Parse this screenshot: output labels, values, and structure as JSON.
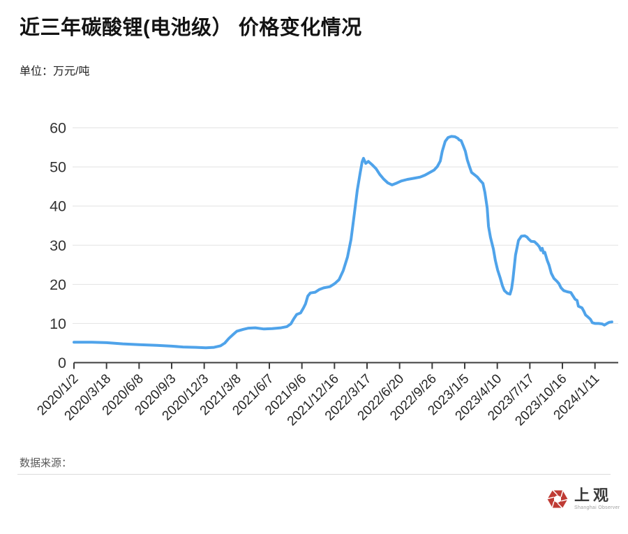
{
  "header": {
    "title": "近三年碳酸锂(电池级） 价格变化情况",
    "unit_label": "单位：万元/吨"
  },
  "footer": {
    "source_label": "数据来源：",
    "logo": {
      "cn": "上观",
      "en": "Shanghai Observer",
      "brand_color": "#bf3b34"
    }
  },
  "chart_data": {
    "type": "line",
    "title": "近三年碳酸锂(电池级） 价格变化情况",
    "unit": "万元/吨",
    "line_color": "#4fa3ea",
    "grid": true,
    "legend": "none",
    "ylim": [
      0,
      60
    ],
    "yticks": [
      0,
      10,
      20,
      30,
      40,
      50,
      60
    ],
    "x_tick_labels": [
      "2020/1/2",
      "2020/3/18",
      "2020/6/8",
      "2020/9/3",
      "2020/12/3",
      "2021/3/8",
      "2021/6/7",
      "2021/9/6",
      "2021/12/16",
      "2022/3/17",
      "2022/6/20",
      "2022/9/26",
      "2023/1/5",
      "2023/4/10",
      "2023/7/17",
      "2023/10/16",
      "2024/1/11"
    ],
    "x_units_note": "points x values are in tick-interval units: 0 = 2020/1/2, 16 = 2024/1/11",
    "points": [
      [
        0,
        5.2
      ],
      [
        0.3,
        5.2
      ],
      [
        0.55,
        5.2
      ],
      [
        1,
        5.1
      ],
      [
        1.5,
        4.8
      ],
      [
        2,
        4.6
      ],
      [
        2.55,
        4.4
      ],
      [
        3,
        4.2
      ],
      [
        3.35,
        4.0
      ],
      [
        3.75,
        3.9
      ],
      [
        4.05,
        3.8
      ],
      [
        4.3,
        3.9
      ],
      [
        4.5,
        4.3
      ],
      [
        4.63,
        5.0
      ],
      [
        4.76,
        6.2
      ],
      [
        4.9,
        7.3
      ],
      [
        5,
        8.0
      ],
      [
        5.2,
        8.5
      ],
      [
        5.36,
        8.8
      ],
      [
        5.57,
        8.9
      ],
      [
        5.83,
        8.6
      ],
      [
        6.09,
        8.7
      ],
      [
        6.36,
        8.9
      ],
      [
        6.54,
        9.2
      ],
      [
        6.66,
        9.9
      ],
      [
        6.75,
        11.2
      ],
      [
        6.84,
        12.3
      ],
      [
        6.96,
        12.7
      ],
      [
        7.05,
        14.0
      ],
      [
        7.11,
        15.0
      ],
      [
        7.18,
        17.0
      ],
      [
        7.26,
        17.8
      ],
      [
        7.41,
        18.0
      ],
      [
        7.54,
        18.7
      ],
      [
        7.67,
        19.1
      ],
      [
        7.86,
        19.4
      ],
      [
        8.01,
        20.2
      ],
      [
        8.14,
        21.2
      ],
      [
        8.27,
        23.5
      ],
      [
        8.4,
        27.0
      ],
      [
        8.51,
        31.5
      ],
      [
        8.61,
        38.0
      ],
      [
        8.7,
        44.0
      ],
      [
        8.79,
        48.5
      ],
      [
        8.85,
        51.3
      ],
      [
        8.89,
        52.2
      ],
      [
        8.96,
        50.9
      ],
      [
        9.04,
        51.4
      ],
      [
        9.15,
        50.6
      ],
      [
        9.28,
        49.5
      ],
      [
        9.39,
        48.1
      ],
      [
        9.51,
        46.9
      ],
      [
        9.64,
        45.9
      ],
      [
        9.77,
        45.4
      ],
      [
        9.92,
        45.9
      ],
      [
        10.05,
        46.4
      ],
      [
        10.24,
        46.8
      ],
      [
        10.44,
        47.1
      ],
      [
        10.63,
        47.4
      ],
      [
        10.78,
        47.9
      ],
      [
        10.93,
        48.6
      ],
      [
        11.06,
        49.2
      ],
      [
        11.16,
        50.1
      ],
      [
        11.25,
        51.5
      ],
      [
        11.31,
        54.0
      ],
      [
        11.4,
        56.5
      ],
      [
        11.49,
        57.5
      ],
      [
        11.59,
        57.8
      ],
      [
        11.7,
        57.7
      ],
      [
        11.79,
        57.3
      ],
      [
        11.83,
        56.9
      ],
      [
        11.89,
        56.7
      ],
      [
        11.96,
        55.3
      ],
      [
        12.02,
        54.0
      ],
      [
        12.08,
        51.8
      ],
      [
        12.15,
        50.0
      ],
      [
        12.21,
        48.6
      ],
      [
        12.3,
        48.0
      ],
      [
        12.39,
        47.4
      ],
      [
        12.47,
        46.6
      ],
      [
        12.56,
        45.8
      ],
      [
        12.62,
        43.5
      ],
      [
        12.69,
        39.5
      ],
      [
        12.73,
        34.8
      ],
      [
        12.79,
        32.0
      ],
      [
        12.88,
        29.0
      ],
      [
        12.94,
        26.1
      ],
      [
        13.01,
        23.7
      ],
      [
        13.09,
        21.6
      ],
      [
        13.16,
        19.6
      ],
      [
        13.22,
        18.4
      ],
      [
        13.31,
        17.7
      ],
      [
        13.39,
        17.5
      ],
      [
        13.44,
        18.9
      ],
      [
        13.48,
        21.3
      ],
      [
        13.52,
        24.3
      ],
      [
        13.56,
        27.5
      ],
      [
        13.61,
        29.5
      ],
      [
        13.65,
        31.2
      ],
      [
        13.74,
        32.3
      ],
      [
        13.84,
        32.4
      ],
      [
        13.91,
        32.1
      ],
      [
        13.97,
        31.5
      ],
      [
        14.04,
        31.0
      ],
      [
        14.14,
        30.9
      ],
      [
        14.23,
        30.2
      ],
      [
        14.29,
        29.6
      ],
      [
        14.34,
        28.7
      ],
      [
        14.38,
        29.2
      ],
      [
        14.42,
        28.0
      ],
      [
        14.46,
        28.2
      ],
      [
        14.53,
        26.2
      ],
      [
        14.59,
        24.9
      ],
      [
        14.66,
        22.8
      ],
      [
        14.74,
        21.5
      ],
      [
        14.83,
        20.8
      ],
      [
        14.89,
        20.2
      ],
      [
        14.96,
        19.1
      ],
      [
        15.04,
        18.4
      ],
      [
        15.15,
        18.1
      ],
      [
        15.26,
        17.9
      ],
      [
        15.32,
        17.1
      ],
      [
        15.39,
        16.2
      ],
      [
        15.45,
        15.9
      ],
      [
        15.49,
        14.4
      ],
      [
        15.6,
        14.0
      ],
      [
        15.66,
        13.1
      ],
      [
        15.71,
        12.2
      ],
      [
        15.79,
        11.6
      ],
      [
        15.86,
        11.1
      ],
      [
        15.92,
        10.2
      ],
      [
        16.01,
        10.0
      ],
      [
        16.11,
        10.0
      ],
      [
        16.22,
        9.9
      ],
      [
        16.29,
        9.6
      ],
      [
        16.37,
        10.0
      ],
      [
        16.44,
        10.3
      ],
      [
        16.52,
        10.4
      ]
    ]
  }
}
